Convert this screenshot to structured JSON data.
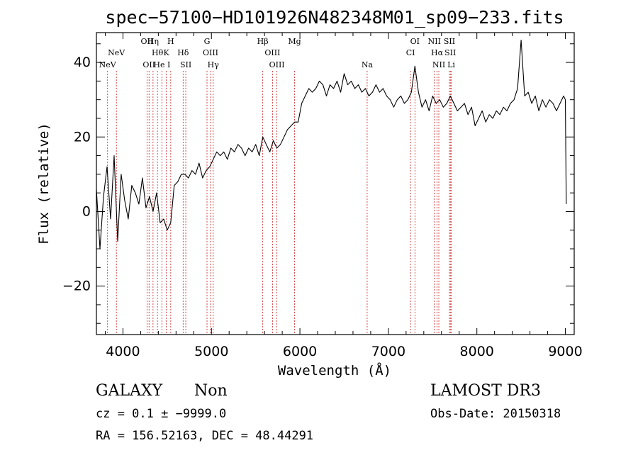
{
  "chart_data": {
    "type": "line",
    "title": "spec−57100−HD101926N482348M01_sp09−233.fits",
    "xlabel": "Wavelength (Å)",
    "ylabel": "Flux (relative)",
    "xlim": [
      3700,
      9100
    ],
    "ylim": [
      -33,
      48
    ],
    "x_ticks": [
      4000,
      5000,
      6000,
      7000,
      8000,
      9000
    ],
    "x_tick_labels": [
      "4000",
      "5000",
      "6000",
      "7000",
      "8000",
      "9000"
    ],
    "y_ticks": [
      -20,
      0,
      20,
      40
    ],
    "y_tick_labels": [
      "−20",
      "0",
      "20",
      "40"
    ],
    "grid": false,
    "line_color": "#000000",
    "marker_color": "#cc2222",
    "spectral_lines": [
      {
        "wavelength": 3826,
        "label": "NeV",
        "row": 1
      },
      {
        "wavelength": 3926,
        "label": "NeV",
        "row": 2
      },
      {
        "wavelength": 4272,
        "label": "OII",
        "row": 3
      },
      {
        "wavelength": 4295,
        "label": "OII",
        "row": 1
      },
      {
        "wavelength": 4340,
        "label": "Hη",
        "row": 3
      },
      {
        "wavelength": 4390,
        "label": "Hθ",
        "row": 2
      },
      {
        "wavelength": 4440,
        "label": "He I",
        "row": 1
      },
      {
        "wavelength": 4490,
        "label": "K",
        "row": 2
      },
      {
        "wavelength": 4540,
        "label": "H",
        "row": 3
      },
      {
        "wavelength": 4680,
        "label": "Hδ",
        "row": 2
      },
      {
        "wavelength": 4710,
        "label": "SII",
        "row": 1
      },
      {
        "wavelength": 4950,
        "label": "G",
        "row": 3
      },
      {
        "wavelength": 4990,
        "label": "OIII",
        "row": 2
      },
      {
        "wavelength": 5020,
        "label": "Hγ",
        "row": 1
      },
      {
        "wavelength": 5580,
        "label": "Hβ",
        "row": 3
      },
      {
        "wavelength": 5690,
        "label": "OIII",
        "row": 2
      },
      {
        "wavelength": 5740,
        "label": "OIII",
        "row": 1
      },
      {
        "wavelength": 5940,
        "label": "Mg",
        "row": 3
      },
      {
        "wavelength": 6760,
        "label": "Na",
        "row": 1
      },
      {
        "wavelength": 7250,
        "label": "CI",
        "row": 2
      },
      {
        "wavelength": 7300,
        "label": "OI",
        "row": 3
      },
      {
        "wavelength": 7520,
        "label": "NII",
        "row": 3
      },
      {
        "wavelength": 7550,
        "label": "Hα",
        "row": 2
      },
      {
        "wavelength": 7570,
        "label": "NII",
        "row": 1
      },
      {
        "wavelength": 7690,
        "label": "SII",
        "row": 3
      },
      {
        "wavelength": 7700,
        "label": "SII",
        "row": 2
      },
      {
        "wavelength": 7710,
        "label": "Li",
        "row": 1
      }
    ],
    "series": [
      {
        "values_x": [
          3700,
          3740,
          3780,
          3820,
          3860,
          3900,
          3940,
          3980,
          4020,
          4060,
          4100,
          4140,
          4180,
          4220,
          4260,
          4300,
          4340,
          4380,
          4420,
          4460,
          4500,
          4540,
          4580,
          4620,
          4660,
          4700,
          4740,
          4780,
          4820,
          4860,
          4900,
          4940,
          4980,
          5020,
          5060,
          5100,
          5140,
          5180,
          5220,
          5260,
          5300,
          5340,
          5380,
          5420,
          5460,
          5500,
          5540,
          5580,
          5620,
          5660,
          5700,
          5740,
          5780,
          5820,
          5860,
          5900,
          5940,
          5980,
          6020,
          6060,
          6100,
          6140,
          6180,
          6220,
          6260,
          6300,
          6340,
          6380,
          6420,
          6460,
          6500,
          6540,
          6580,
          6620,
          6660,
          6700,
          6740,
          6780,
          6820,
          6860,
          6900,
          6940,
          6980,
          7020,
          7060,
          7100,
          7140,
          7180,
          7220,
          7260,
          7300,
          7340,
          7380,
          7420,
          7460,
          7500,
          7540,
          7580,
          7620,
          7660,
          7700,
          7740,
          7780,
          7820,
          7860,
          7900,
          7940,
          7980,
          8020,
          8060,
          8100,
          8140,
          8180,
          8220,
          8260,
          8300,
          8340,
          8380,
          8420,
          8460,
          8500,
          8540,
          8580,
          8620,
          8660,
          8700,
          8740,
          8780,
          8820,
          8860,
          8900,
          8940,
          8980,
          9000,
          9010
        ],
        "values_y": [
          6,
          -10,
          4,
          12,
          -2,
          15,
          -8,
          10,
          3,
          -2,
          7,
          5,
          2,
          9,
          1,
          4,
          0,
          5,
          -3,
          -2,
          -5,
          -3,
          7,
          8,
          10,
          10,
          9,
          11,
          10,
          13,
          9,
          11,
          12,
          14,
          16,
          15,
          16,
          14,
          17,
          16,
          18,
          17,
          15,
          17,
          16,
          18,
          15,
          20,
          18,
          16,
          19,
          17,
          18,
          20,
          22,
          23,
          24,
          24,
          29,
          31,
          33,
          32,
          33,
          35,
          34,
          31,
          34,
          33,
          35,
          32,
          37,
          34,
          35,
          33,
          34,
          32,
          33,
          31,
          32,
          34,
          32,
          33,
          31,
          30,
          28,
          30,
          31,
          29,
          30,
          32,
          39,
          32,
          28,
          30,
          27,
          31,
          29,
          30,
          28,
          29,
          31,
          29,
          27,
          28,
          29,
          26,
          28,
          23,
          25,
          27,
          24,
          26,
          25,
          27,
          26,
          28,
          27,
          29,
          30,
          33,
          46,
          31,
          32,
          29,
          31,
          27,
          30,
          28,
          30,
          29,
          27,
          29,
          31,
          30,
          2
        ]
      }
    ]
  },
  "footer": {
    "class_label": "GALAXY",
    "subclass_label": "Non",
    "survey_label": "LAMOST DR3",
    "redshift_text": "cz = 0.1 ± −9999.0",
    "obs_date_text": "Obs-Date: 20150318",
    "coords_text": "RA = 156.52163, DEC =  48.44291"
  }
}
